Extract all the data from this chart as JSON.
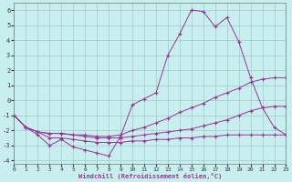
{
  "xlabel": "Windchill (Refroidissement éolien,°C)",
  "bg_color": "#c8eeee",
  "line_color": "#993399",
  "grid_color": "#99cccc",
  "x_ticks": [
    0,
    1,
    2,
    3,
    4,
    5,
    6,
    7,
    8,
    9,
    10,
    11,
    12,
    13,
    14,
    15,
    16,
    17,
    18,
    19,
    20,
    21,
    22,
    23
  ],
  "y_ticks": [
    -4,
    -3,
    -2,
    -1,
    0,
    1,
    2,
    3,
    4,
    5,
    6
  ],
  "xlim": [
    0,
    23
  ],
  "ylim": [
    -4.2,
    6.5
  ],
  "series": [
    {
      "x": [
        0,
        1,
        2,
        3,
        4,
        5,
        6,
        7,
        8,
        9,
        10,
        11,
        12,
        13,
        14,
        15,
        16,
        17,
        18,
        19,
        20,
        21,
        22,
        23
      ],
      "y": [
        -1.0,
        -1.8,
        -2.3,
        -3.0,
        -2.6,
        -3.1,
        -3.3,
        -3.5,
        -3.7,
        -2.4,
        -0.3,
        0.1,
        0.5,
        3.0,
        4.4,
        6.0,
        5.9,
        4.9,
        5.5,
        3.9,
        1.5,
        -0.5,
        -1.8,
        -2.3
      ]
    },
    {
      "x": [
        0,
        1,
        2,
        3,
        4,
        5,
        6,
        7,
        8,
        9,
        10,
        11,
        12,
        13,
        14,
        15,
        16,
        17,
        18,
        19,
        20,
        21,
        22,
        23
      ],
      "y": [
        -1.0,
        -1.8,
        -2.1,
        -2.2,
        -2.2,
        -2.3,
        -2.3,
        -2.4,
        -2.4,
        -2.3,
        -2.0,
        -1.8,
        -1.5,
        -1.2,
        -0.8,
        -0.5,
        -0.2,
        0.2,
        0.5,
        0.8,
        1.2,
        1.4,
        1.5,
        1.5
      ]
    },
    {
      "x": [
        0,
        1,
        2,
        3,
        4,
        5,
        6,
        7,
        8,
        9,
        10,
        11,
        12,
        13,
        14,
        15,
        16,
        17,
        18,
        19,
        20,
        21,
        22,
        23
      ],
      "y": [
        -1.0,
        -1.8,
        -2.1,
        -2.2,
        -2.2,
        -2.3,
        -2.4,
        -2.5,
        -2.5,
        -2.5,
        -2.4,
        -2.3,
        -2.2,
        -2.1,
        -2.0,
        -1.9,
        -1.7,
        -1.5,
        -1.3,
        -1.0,
        -0.7,
        -0.5,
        -0.4,
        -0.4
      ]
    },
    {
      "x": [
        0,
        1,
        2,
        3,
        4,
        5,
        6,
        7,
        8,
        9,
        10,
        11,
        12,
        13,
        14,
        15,
        16,
        17,
        18,
        19,
        20,
        21,
        22,
        23
      ],
      "y": [
        -1.0,
        -1.8,
        -2.1,
        -2.5,
        -2.5,
        -2.6,
        -2.7,
        -2.8,
        -2.8,
        -2.8,
        -2.7,
        -2.7,
        -2.6,
        -2.6,
        -2.5,
        -2.5,
        -2.4,
        -2.4,
        -2.3,
        -2.3,
        -2.3,
        -2.3,
        -2.3,
        -2.3
      ]
    }
  ]
}
